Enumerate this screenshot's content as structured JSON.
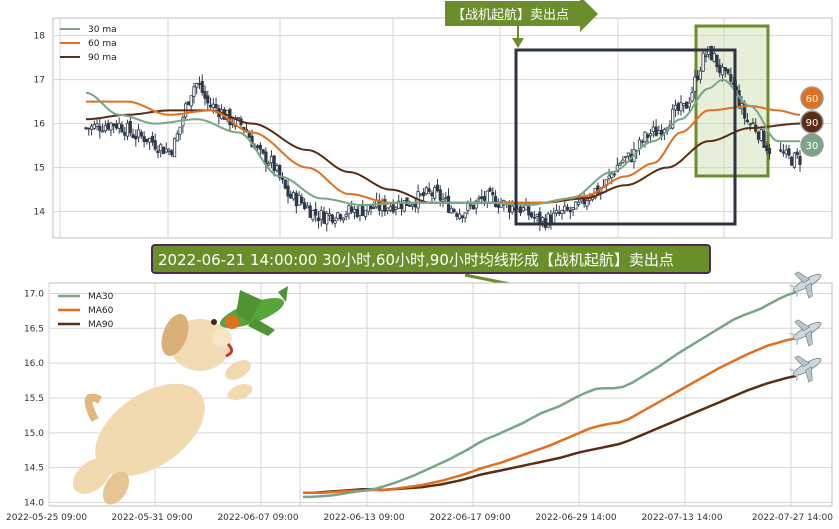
{
  "colors": {
    "ma30": "#7aa587",
    "ma60": "#e07020",
    "ma90": "#5a2d14",
    "candle": "#2e3a4a",
    "grid": "#d6d6d6",
    "banner": "#6a8f2a",
    "box": "#2b3440",
    "highlight": "#6a8f2a"
  },
  "top_banner": "【战机起航】卖出点",
  "bottom_banner": "2022-06-21 14:00:00 30小时,60小时,90小时均线形成【战机起航】卖出点",
  "badges": {
    "ma60": "60",
    "ma90": "90",
    "ma30": "30"
  },
  "chart_data": [
    {
      "type": "line",
      "name": "price-panel",
      "legend": [
        "30 ma",
        "60 ma",
        "90 ma"
      ],
      "legend_position": "top-left",
      "ylim": [
        13.4,
        18.4
      ],
      "yticks": [
        "14",
        "15",
        "16",
        "17",
        "18"
      ],
      "grid": true,
      "n_bars": 220,
      "close_anchors": [
        [
          0,
          15.9
        ],
        [
          10,
          16.0
        ],
        [
          20,
          15.7
        ],
        [
          30,
          15.4
        ],
        [
          40,
          16.9
        ],
        [
          45,
          16.4
        ],
        [
          55,
          16.0
        ],
        [
          65,
          15.2
        ],
        [
          75,
          14.3
        ],
        [
          85,
          13.9
        ],
        [
          95,
          14.0
        ],
        [
          105,
          14.1
        ],
        [
          115,
          14.2
        ],
        [
          125,
          14.4
        ],
        [
          135,
          14.0
        ],
        [
          145,
          14.3
        ],
        [
          155,
          14.1
        ],
        [
          165,
          13.8
        ],
        [
          175,
          14.0
        ],
        [
          185,
          14.5
        ],
        [
          195,
          15.2
        ],
        [
          205,
          15.8
        ],
        [
          215,
          16.3
        ],
        [
          225,
          17.6
        ],
        [
          232,
          17.0
        ],
        [
          240,
          16.0
        ],
        [
          248,
          15.4
        ],
        [
          255,
          15.2
        ]
      ],
      "ma30_anchors": [
        [
          0,
          16.7
        ],
        [
          12,
          16.2
        ],
        [
          25,
          16.0
        ],
        [
          40,
          16.1
        ],
        [
          55,
          15.8
        ],
        [
          70,
          14.8
        ],
        [
          85,
          14.3
        ],
        [
          100,
          14.15
        ],
        [
          115,
          14.2
        ],
        [
          130,
          14.2
        ],
        [
          145,
          14.2
        ],
        [
          160,
          14.15
        ],
        [
          175,
          14.3
        ],
        [
          190,
          14.9
        ],
        [
          205,
          15.6
        ],
        [
          215,
          16.1
        ],
        [
          225,
          16.8
        ],
        [
          230,
          17.0
        ],
        [
          240,
          16.4
        ],
        [
          250,
          15.6
        ]
      ],
      "ma60_anchors": [
        [
          0,
          16.5
        ],
        [
          15,
          16.5
        ],
        [
          30,
          16.2
        ],
        [
          45,
          16.3
        ],
        [
          60,
          15.8
        ],
        [
          80,
          15.0
        ],
        [
          95,
          14.4
        ],
        [
          110,
          14.2
        ],
        [
          130,
          14.2
        ],
        [
          150,
          14.2
        ],
        [
          165,
          14.2
        ],
        [
          180,
          14.35
        ],
        [
          195,
          14.8
        ],
        [
          205,
          15.1
        ],
        [
          215,
          15.8
        ],
        [
          225,
          16.3
        ],
        [
          240,
          16.4
        ],
        [
          250,
          16.3
        ],
        [
          258,
          16.2
        ]
      ],
      "ma90_anchors": [
        [
          0,
          16.1
        ],
        [
          15,
          16.2
        ],
        [
          30,
          16.3
        ],
        [
          45,
          16.3
        ],
        [
          60,
          16.0
        ],
        [
          80,
          15.4
        ],
        [
          95,
          14.9
        ],
        [
          110,
          14.5
        ],
        [
          125,
          14.2
        ],
        [
          145,
          14.2
        ],
        [
          165,
          14.2
        ],
        [
          180,
          14.3
        ],
        [
          195,
          14.6
        ],
        [
          210,
          15.0
        ],
        [
          225,
          15.6
        ],
        [
          240,
          15.9
        ],
        [
          258,
          16.0
        ]
      ],
      "ma_end_index": 258,
      "price_end_index": 258
    },
    {
      "type": "line",
      "name": "ma-panel",
      "legend": [
        "MA30",
        "MA60",
        "MA90"
      ],
      "legend_position": "top-left",
      "ylim": [
        13.95,
        17.15
      ],
      "yticks": [
        "14.0",
        "14.5",
        "15.0",
        "15.5",
        "16.0",
        "16.5",
        "17.0"
      ],
      "xticks": [
        "2022-05-25 09:00",
        "2022-05-31 09:00",
        "2022-06-07 09:00",
        "2022-06-13 09:00",
        "2022-06-17 09:00",
        "2022-06-29 14:00",
        "2022-07-13 14:00",
        "2022-07-27 14:00"
      ],
      "grid": true,
      "n": 70,
      "ma30": [
        14.08,
        14.08,
        14.09,
        14.1,
        14.12,
        14.14,
        14.16,
        14.18,
        14.2,
        14.24,
        14.28,
        14.33,
        14.38,
        14.44,
        14.5,
        14.56,
        14.62,
        14.69,
        14.76,
        14.84,
        14.91,
        14.96,
        15.02,
        15.08,
        15.14,
        15.21,
        15.28,
        15.33,
        15.38,
        15.45,
        15.52,
        15.58,
        15.63,
        15.64,
        15.64,
        15.66,
        15.72,
        15.8,
        15.88,
        15.96,
        16.05,
        16.14,
        16.22,
        16.3,
        16.38,
        16.46,
        16.54,
        16.62,
        16.68,
        16.73,
        16.78,
        16.85,
        16.92,
        16.98,
        17.02
      ],
      "ma60": [
        14.14,
        14.14,
        14.14,
        14.15,
        14.16,
        14.17,
        14.17,
        14.18,
        14.18,
        14.19,
        14.21,
        14.23,
        14.25,
        14.28,
        14.31,
        14.35,
        14.39,
        14.44,
        14.49,
        14.53,
        14.57,
        14.62,
        14.67,
        14.72,
        14.77,
        14.82,
        14.88,
        14.94,
        15.0,
        15.06,
        15.1,
        15.13,
        15.15,
        15.2,
        15.28,
        15.36,
        15.44,
        15.52,
        15.6,
        15.68,
        15.76,
        15.84,
        15.92,
        15.99,
        16.06,
        16.13,
        16.19,
        16.25,
        16.29,
        16.33,
        16.36
      ],
      "ma90": [
        14.14,
        14.14,
        14.15,
        14.16,
        14.17,
        14.18,
        14.19,
        14.19,
        14.18,
        14.19,
        14.2,
        14.21,
        14.22,
        14.24,
        14.26,
        14.29,
        14.32,
        14.36,
        14.4,
        14.43,
        14.46,
        14.49,
        14.52,
        14.55,
        14.58,
        14.61,
        14.64,
        14.68,
        14.72,
        14.75,
        14.78,
        14.81,
        14.84,
        14.89,
        14.95,
        15.01,
        15.07,
        15.13,
        15.19,
        15.25,
        15.31,
        15.37,
        15.43,
        15.49,
        15.55,
        15.61,
        15.66,
        15.71,
        15.75,
        15.79,
        15.82
      ]
    }
  ]
}
